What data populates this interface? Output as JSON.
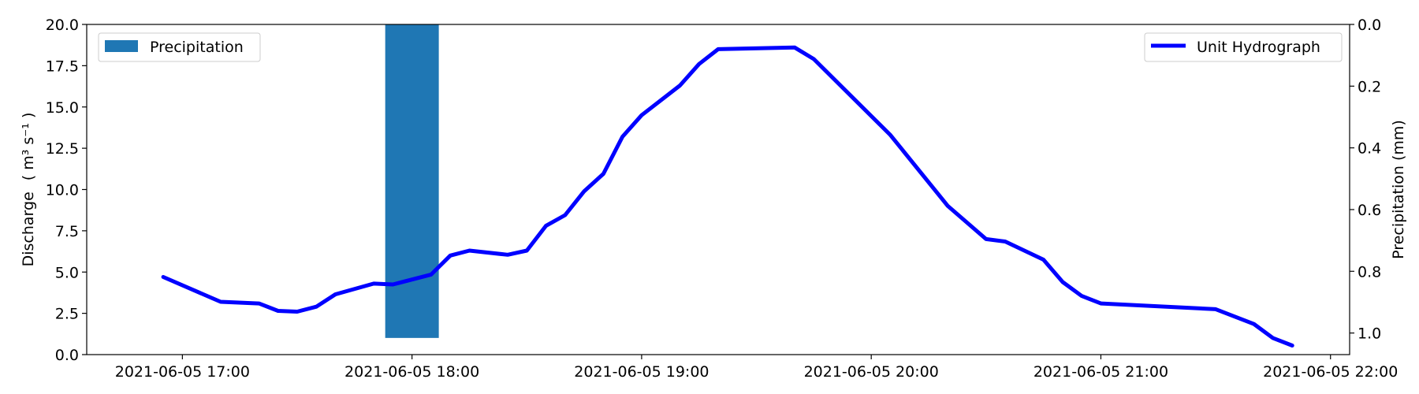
{
  "chart_data": {
    "type": "line",
    "title": "",
    "xlabel": "",
    "ylabel_left": "Discharge",
    "ylabel_left_unit": "( m³ s⁻¹ )",
    "ylabel_right": "Precipitation (mm)",
    "xlim": [
      "2021-06-05 16:35",
      "2021-06-05 22:05"
    ],
    "ylim_left": [
      0,
      20
    ],
    "ylim_right_inverted": [
      0,
      1.07
    ],
    "x_ticks": [
      "2021-06-05 17:00",
      "2021-06-05 18:00",
      "2021-06-05 19:00",
      "2021-06-05 20:00",
      "2021-06-05 21:00",
      "2021-06-05 22:00"
    ],
    "y_ticks_left": [
      "0.0",
      "2.5",
      "5.0",
      "7.5",
      "10.0",
      "12.5",
      "15.0",
      "17.5",
      "20.0"
    ],
    "y_ticks_right": [
      "0.0",
      "0.2",
      "0.4",
      "0.6",
      "0.8",
      "1.0"
    ],
    "grid": false,
    "series": [
      {
        "name": "Unit Hydrograph",
        "axis": "left",
        "color": "#0000ff",
        "points": [
          [
            "2021-06-05 16:55",
            4.7
          ],
          [
            "2021-06-05 17:10",
            3.2
          ],
          [
            "2021-06-05 17:20",
            3.1
          ],
          [
            "2021-06-05 17:25",
            2.65
          ],
          [
            "2021-06-05 17:30",
            2.6
          ],
          [
            "2021-06-05 17:35",
            2.9
          ],
          [
            "2021-06-05 17:40",
            3.65
          ],
          [
            "2021-06-05 17:50",
            4.3
          ],
          [
            "2021-06-05 17:55",
            4.25
          ],
          [
            "2021-06-05 18:05",
            4.85
          ],
          [
            "2021-06-05 18:10",
            6.0
          ],
          [
            "2021-06-05 18:15",
            6.3
          ],
          [
            "2021-06-05 18:25",
            6.05
          ],
          [
            "2021-06-05 18:30",
            6.3
          ],
          [
            "2021-06-05 18:35",
            7.8
          ],
          [
            "2021-06-05 18:40",
            8.45
          ],
          [
            "2021-06-05 18:45",
            9.9
          ],
          [
            "2021-06-05 18:50",
            10.95
          ],
          [
            "2021-06-05 18:55",
            13.2
          ],
          [
            "2021-06-05 19:00",
            14.5
          ],
          [
            "2021-06-05 19:10",
            16.3
          ],
          [
            "2021-06-05 19:15",
            17.6
          ],
          [
            "2021-06-05 19:20",
            18.5
          ],
          [
            "2021-06-05 19:40",
            18.6
          ],
          [
            "2021-06-05 19:45",
            17.9
          ],
          [
            "2021-06-05 20:05",
            13.3
          ],
          [
            "2021-06-05 20:20",
            9.0
          ],
          [
            "2021-06-05 20:30",
            7.0
          ],
          [
            "2021-06-05 20:35",
            6.85
          ],
          [
            "2021-06-05 20:45",
            5.75
          ],
          [
            "2021-06-05 20:50",
            4.4
          ],
          [
            "2021-06-05 20:55",
            3.55
          ],
          [
            "2021-06-05 21:00",
            3.1
          ],
          [
            "2021-06-05 21:30",
            2.75
          ],
          [
            "2021-06-05 21:40",
            1.85
          ],
          [
            "2021-06-05 21:45",
            1.0
          ],
          [
            "2021-06-05 21:50",
            0.55
          ]
        ]
      },
      {
        "name": "Precipitation",
        "axis": "right",
        "type": "bar",
        "color": "#1f77b4",
        "bars": [
          {
            "start": "2021-06-05 17:53",
            "end": "2021-06-05 18:07",
            "value": 1.016
          }
        ]
      }
    ],
    "legends": [
      {
        "label": "Precipitation",
        "position": "top-left"
      },
      {
        "label": "Unit Hydrograph",
        "position": "top-right"
      }
    ]
  }
}
